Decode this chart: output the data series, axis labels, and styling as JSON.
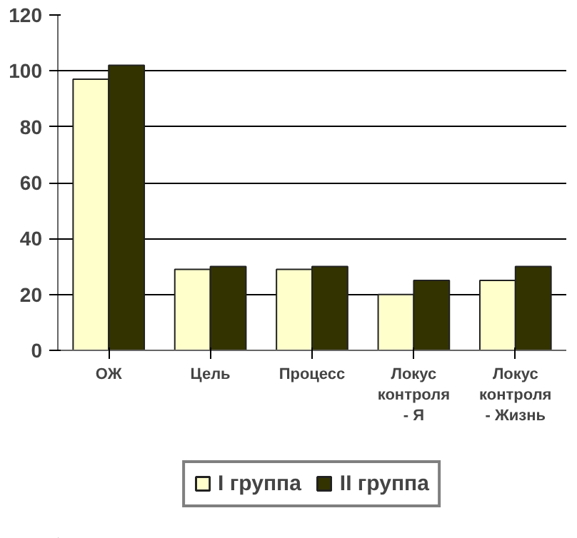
{
  "chart_data": {
    "type": "bar",
    "categories": [
      "ОЖ",
      "Цель",
      "Процесс",
      "Локус контроля - Я",
      "Локус контроля - Жизнь"
    ],
    "series": [
      {
        "name": "I группа",
        "color": "#ffffcc",
        "values": [
          97,
          29,
          29,
          20,
          25
        ]
      },
      {
        "name": "II группа",
        "color": "#333300",
        "values": [
          102,
          30,
          30,
          25,
          30
        ]
      }
    ],
    "ylim": [
      0,
      120
    ],
    "yticks": [
      0,
      20,
      40,
      60,
      80,
      100,
      120
    ],
    "grid": "y",
    "legend": "bottom"
  }
}
